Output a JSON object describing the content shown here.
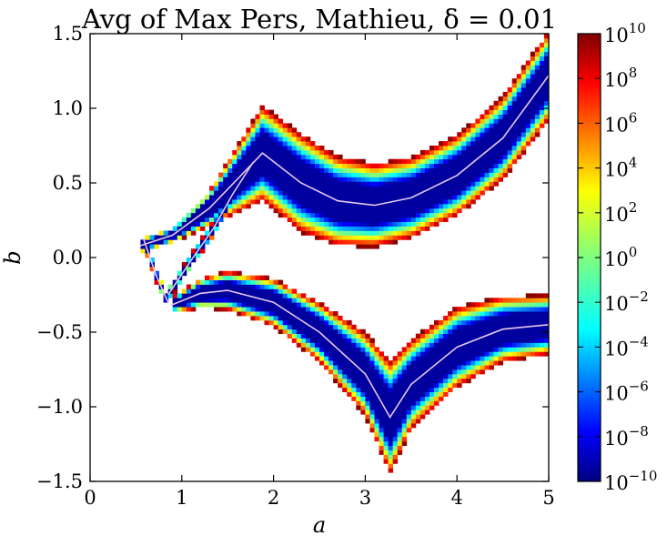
{
  "chart_data": {
    "type": "heatmap",
    "title": "Avg of Max Pers, Mathieu, δ = 0.01",
    "xlabel": "a",
    "ylabel": "b",
    "xlim": [
      0,
      5
    ],
    "ylim": [
      -1.5,
      1.5
    ],
    "x_ticks": [
      "0",
      "1",
      "2",
      "3",
      "4",
      "5"
    ],
    "y_ticks": [
      "1.5",
      "1.0",
      "0.5",
      "0.0",
      "−0.5",
      "−1.0",
      "−1.5"
    ],
    "x_tick_values": [
      0,
      1,
      2,
      3,
      4,
      5
    ],
    "y_tick_values": [
      1.5,
      1.0,
      0.5,
      0.0,
      -0.5,
      -1.0,
      -1.5
    ],
    "colorbar": {
      "colormap": "jet",
      "scale": "log",
      "range_exponent": [
        -10,
        10
      ],
      "tick_base": "10",
      "tick_exponents": [
        "10",
        "8",
        "6",
        "4",
        "2",
        "0",
        "−2",
        "−4",
        "−6",
        "−8",
        "−10"
      ],
      "tick_exponent_values": [
        10,
        8,
        6,
        4,
        2,
        0,
        -2,
        -4,
        -6,
        -8,
        -10
      ]
    },
    "contour_color": "#e8c8e8",
    "bands": [
      {
        "name": "",
        "contour": [
          [
            0.55,
            0.08
          ],
          [
            0.9,
            0.15
          ],
          [
            1.3,
            0.33
          ],
          [
            1.88,
            0.7
          ],
          [
            2.3,
            0.5
          ],
          [
            2.7,
            0.38
          ],
          [
            3.1,
            0.35
          ],
          [
            3.5,
            0.4
          ],
          [
            4.0,
            0.55
          ],
          [
            4.5,
            0.8
          ],
          [
            5.0,
            1.22
          ]
        ],
        "width": [
          0.05,
          0.05,
          0.12,
          0.32,
          0.33,
          0.3,
          0.28,
          0.27,
          0.27,
          0.28,
          0.3
        ]
      },
      {
        "name": "",
        "contour": [
          [
            0.88,
            -0.32
          ],
          [
            1.2,
            -0.24
          ],
          [
            1.5,
            -0.22
          ],
          [
            2.0,
            -0.3
          ],
          [
            2.5,
            -0.5
          ],
          [
            3.0,
            -0.78
          ],
          [
            3.27,
            -1.07
          ],
          [
            3.5,
            -0.85
          ],
          [
            4.0,
            -0.6
          ],
          [
            4.5,
            -0.48
          ],
          [
            5.0,
            -0.45
          ]
        ],
        "width": [
          0.05,
          0.1,
          0.13,
          0.16,
          0.2,
          0.28,
          0.38,
          0.3,
          0.27,
          0.22,
          0.2
        ]
      },
      {
        "name": "",
        "contour": [
          [
            0.58,
            0.13
          ],
          [
            0.72,
            -0.12
          ],
          [
            0.85,
            -0.3
          ]
        ],
        "width": [
          0.04,
          0.04,
          0.04
        ]
      },
      {
        "name": "",
        "contour": [
          [
            0.85,
            -0.25
          ],
          [
            1.1,
            -0.02
          ],
          [
            1.35,
            0.2
          ],
          [
            1.55,
            0.42
          ],
          [
            1.78,
            0.64
          ]
        ],
        "width": [
          0.045,
          0.045,
          0.05,
          0.05,
          0.045
        ]
      }
    ]
  }
}
